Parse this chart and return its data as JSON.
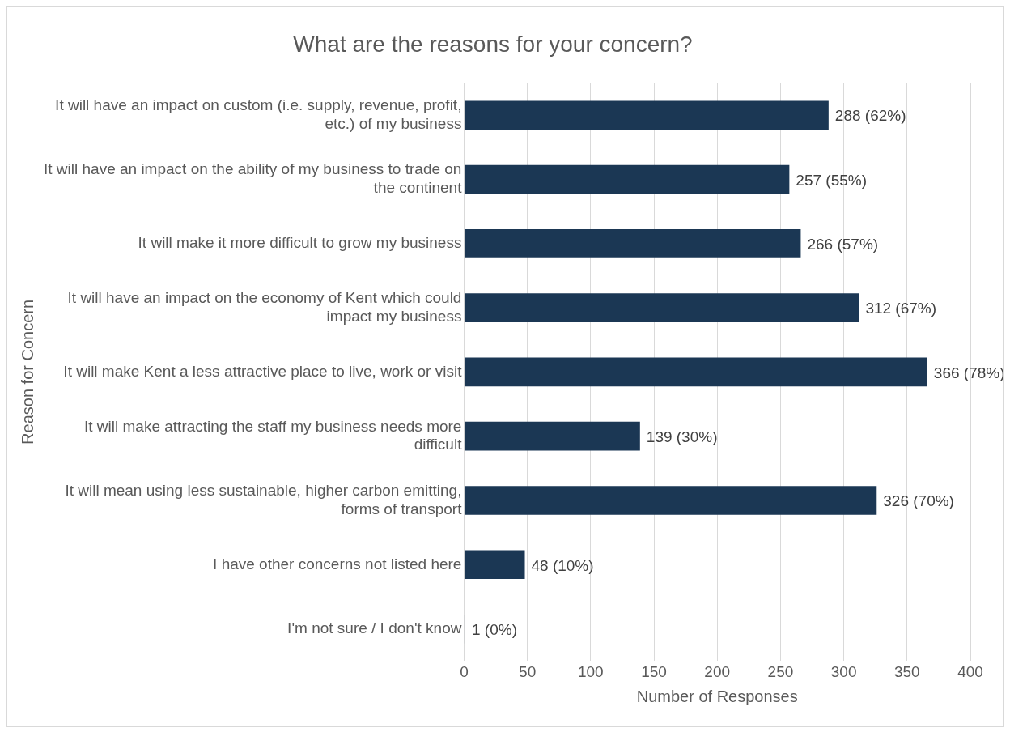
{
  "chart_data": {
    "type": "bar",
    "orientation": "horizontal",
    "title": "What are the reasons for your concern?",
    "xlabel": "Number of Responses",
    "ylabel": "Reason for Concern",
    "categories": [
      "It will have an impact on custom (i.e. supply, revenue, profit, etc.) of my business",
      "It will have an impact on the ability of my business to trade on the continent",
      "It will make it more difficult to grow my business",
      "It will have an impact on the economy of Kent which could impact my business",
      "It will make Kent a less attractive place to live, work or visit",
      "It will make attracting the staff my business needs more difficult",
      "It will mean using less sustainable, higher carbon emitting, forms of transport",
      "I have other concerns not listed here",
      "I'm not sure / I don't know"
    ],
    "values": [
      288,
      257,
      266,
      312,
      366,
      139,
      326,
      48,
      1
    ],
    "value_labels": [
      "288 (62%)",
      "257 (55%)",
      "266 (57%)",
      "312 (67%)",
      "366 (78%)",
      "139 (30%)",
      "326 (70%)",
      "48 (10%)",
      "1 (0%)"
    ],
    "color": "#1b3754",
    "xlim": [
      0,
      400
    ],
    "xticks": [
      0,
      50,
      100,
      150,
      200,
      250,
      300,
      350,
      400
    ],
    "grid": "x",
    "legend": false
  }
}
